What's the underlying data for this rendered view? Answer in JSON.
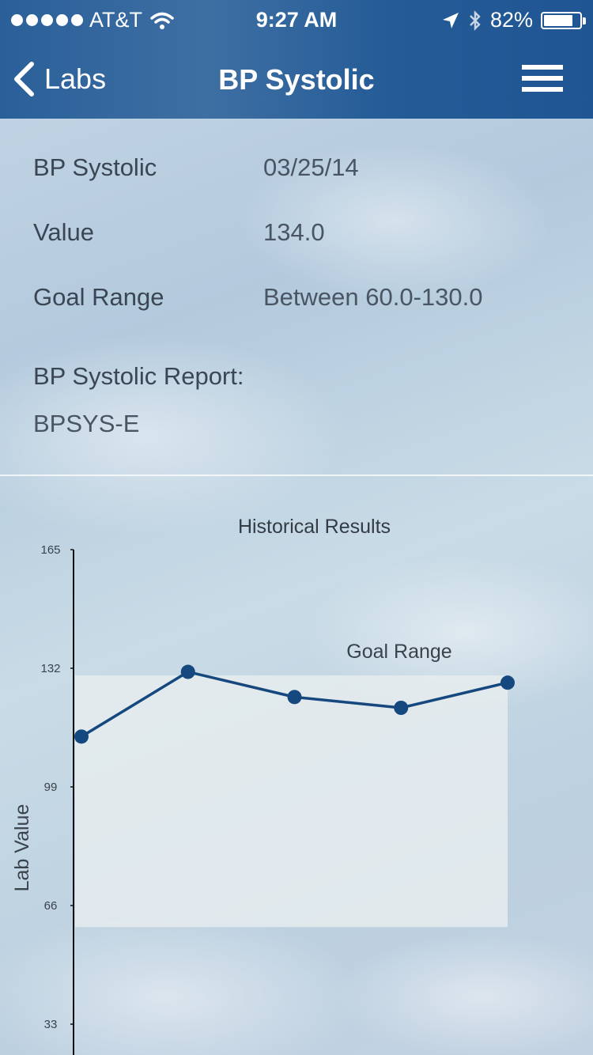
{
  "status_bar": {
    "carrier": "AT&T",
    "time": "9:27 AM",
    "battery": "82%",
    "battery_level": 0.82
  },
  "nav": {
    "back_label": "Labs",
    "title": "BP Systolic"
  },
  "details": {
    "test_label": "BP Systolic",
    "test_date": "03/25/14",
    "value_label": "Value",
    "value": "134.0",
    "goal_label": "Goal Range",
    "goal_value": "Between 60.0-130.0",
    "report_label": "BP Systolic Report:",
    "report_value": "BPSYS-E"
  },
  "chart_data": {
    "type": "line",
    "title": "Historical Results",
    "ylabel": "Lab Value",
    "ylim": [
      33,
      165
    ],
    "yticks": [
      "165",
      "132",
      "99",
      "66",
      "33"
    ],
    "goal_range": [
      60,
      130
    ],
    "goal_label": "Goal Range",
    "x": [
      1,
      2,
      3,
      4,
      5
    ],
    "values": [
      113,
      131,
      124,
      121,
      128
    ],
    "colors": {
      "line": "#15487e",
      "goal_band": "#e9eeef"
    }
  }
}
